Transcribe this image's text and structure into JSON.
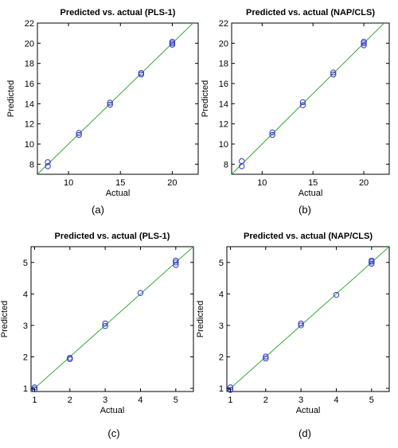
{
  "chart_data": [
    {
      "type": "scatter",
      "title": "Predicted vs. actual (PLS-1)",
      "xlabel": "Actual",
      "ylabel": "Predicted",
      "caption": "(a)",
      "xlim": [
        7,
        22.5
      ],
      "ylim": [
        7,
        22
      ],
      "xticks": [
        10,
        15,
        20
      ],
      "yticks": [
        8,
        10,
        12,
        14,
        16,
        18,
        20,
        22
      ],
      "fit_line": [
        [
          7,
          7
        ],
        [
          22.5,
          22.5
        ]
      ],
      "points": [
        [
          8,
          7.8
        ],
        [
          8,
          8.2
        ],
        [
          11,
          10.9
        ],
        [
          11,
          11.1
        ],
        [
          14,
          13.9
        ],
        [
          14,
          14.1
        ],
        [
          17,
          16.9
        ],
        [
          17,
          17.05
        ],
        [
          20,
          19.85
        ],
        [
          20,
          20.0
        ],
        [
          20,
          20.15
        ]
      ],
      "marker_color": "#3333cc",
      "line_color": "#33aa33"
    },
    {
      "type": "scatter",
      "title": "Predicted vs. actual (NAP/CLS)",
      "xlabel": "Actual",
      "ylabel": "Predicted",
      "caption": "(b)",
      "xlim": [
        7,
        22.5
      ],
      "ylim": [
        7,
        22
      ],
      "xticks": [
        10,
        15,
        20
      ],
      "yticks": [
        8,
        10,
        12,
        14,
        16,
        18,
        20,
        22
      ],
      "fit_line": [
        [
          7,
          7
        ],
        [
          22.5,
          22.5
        ]
      ],
      "points": [
        [
          8,
          7.8
        ],
        [
          8,
          8.3
        ],
        [
          11,
          10.9
        ],
        [
          11,
          11.15
        ],
        [
          14,
          13.85
        ],
        [
          14,
          14.15
        ],
        [
          17,
          16.9
        ],
        [
          17,
          17.1
        ],
        [
          20,
          19.8
        ],
        [
          20,
          20.0
        ],
        [
          20,
          20.15
        ]
      ],
      "marker_color": "#3333cc",
      "line_color": "#33aa33"
    },
    {
      "type": "scatter",
      "title": "Predicted vs. actual (PLS-1)",
      "xlabel": "Actual",
      "ylabel": "Predicted",
      "caption": "(c)",
      "xlim": [
        0.9,
        5.5
      ],
      "ylim": [
        0.9,
        5.5
      ],
      "xticks": [
        1,
        2,
        3,
        4,
        5
      ],
      "yticks": [
        1,
        2,
        3,
        4,
        5
      ],
      "fit_line": [
        [
          0.9,
          0.9
        ],
        [
          5.5,
          5.5
        ]
      ],
      "points": [
        [
          1,
          0.97
        ],
        [
          1,
          1.03
        ],
        [
          2,
          1.93
        ],
        [
          2,
          1.97
        ],
        [
          3,
          2.98
        ],
        [
          3,
          3.06
        ],
        [
          4,
          4.03
        ],
        [
          5,
          4.92
        ],
        [
          5,
          5.0
        ],
        [
          5,
          5.06
        ]
      ],
      "marker_color": "#3333cc",
      "line_color": "#33aa33"
    },
    {
      "type": "scatter",
      "title": "Predicted vs. actual (NAP/CLS)",
      "xlabel": "Actual",
      "ylabel": "Predicted",
      "caption": "(d)",
      "xlim": [
        0.9,
        5.5
      ],
      "ylim": [
        0.9,
        5.5
      ],
      "xticks": [
        1,
        2,
        3,
        4,
        5
      ],
      "yticks": [
        1,
        2,
        3,
        4,
        5
      ],
      "fit_line": [
        [
          0.9,
          0.9
        ],
        [
          5.5,
          5.5
        ]
      ],
      "points": [
        [
          1,
          0.95
        ],
        [
          1,
          1.03
        ],
        [
          2,
          1.95
        ],
        [
          2,
          2.01
        ],
        [
          3,
          3.0
        ],
        [
          3,
          3.06
        ],
        [
          4,
          3.97
        ],
        [
          5,
          4.96
        ],
        [
          5,
          5.02
        ],
        [
          5,
          5.06
        ]
      ],
      "marker_color": "#3333cc",
      "line_color": "#33aa33"
    }
  ]
}
